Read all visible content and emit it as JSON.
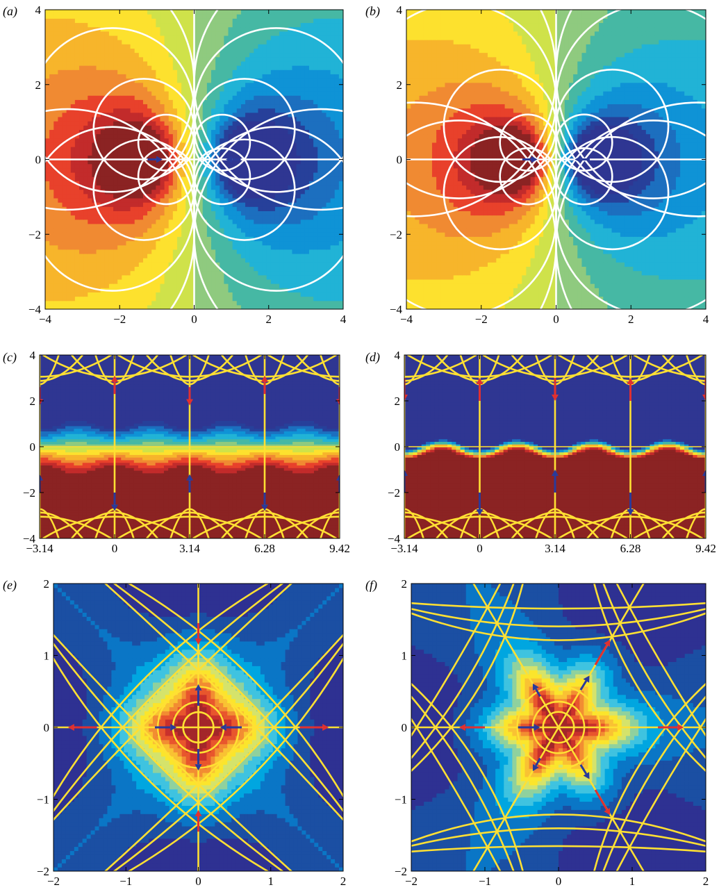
{
  "chart_data": [
    {
      "panel": "a",
      "label": "(a)",
      "type": "heatmap",
      "colormap": "diverging-red-blue",
      "field": "dipole-pair-streamfunction",
      "xlim": [
        -4,
        4
      ],
      "ylim": [
        -4,
        4
      ],
      "xticks": [
        -4,
        -2,
        0,
        2,
        4
      ],
      "yticks": [
        -4,
        -2,
        0,
        2,
        4
      ],
      "xticklabels": [
        "−4",
        "−2",
        "0",
        "2",
        "4"
      ],
      "yticklabels": [
        "−4",
        "−2",
        "0",
        "2",
        "4"
      ],
      "streamline_color": "#ffffff",
      "arrows": [
        {
          "x": -1.25,
          "y": 0,
          "dx": 0.4,
          "dy": 0,
          "color": "#2a3a9a"
        },
        {
          "x": 1.25,
          "y": 0,
          "dx": -0.4,
          "dy": 0,
          "color": "#2a3a9a"
        }
      ]
    },
    {
      "panel": "b",
      "label": "(b)",
      "type": "heatmap",
      "colormap": "diverging-red-blue",
      "field": "dipole-pair-streamfunction",
      "xlim": [
        -4,
        4
      ],
      "ylim": [
        -4,
        4
      ],
      "xticks": [
        -4,
        -2,
        0,
        2,
        4
      ],
      "yticks": [
        -4,
        -2,
        0,
        2,
        4
      ],
      "xticklabels": [
        "−4",
        "−2",
        "0",
        "2",
        "4"
      ],
      "yticklabels": [
        "−4",
        "−2",
        "0",
        "2",
        "4"
      ],
      "streamline_color": "#ffffff",
      "arrows": [
        {
          "x": -0.9,
          "y": 0,
          "dx": 0.4,
          "dy": 0,
          "color": "#2a3a9a"
        },
        {
          "x": 0.9,
          "y": 0,
          "dx": -0.4,
          "dy": 0,
          "color": "#2a3a9a"
        }
      ]
    },
    {
      "panel": "c",
      "label": "(c)",
      "type": "heatmap",
      "colormap": "diverging-red-blue",
      "field": "periodic-vortex-row",
      "xlim": [
        -3.14,
        9.42
      ],
      "ylim": [
        -4,
        4
      ],
      "xticks": [
        -3.14,
        0,
        3.14,
        6.28,
        9.42
      ],
      "yticks": [
        -4,
        -2,
        0,
        2,
        4
      ],
      "xticklabels": [
        "−3.14",
        "0",
        "3.14",
        "6.28",
        "9.42"
      ],
      "yticklabels": [
        "−4",
        "−2",
        "0",
        "2",
        "4"
      ],
      "streamline_color": "#ffe033",
      "arrows": [
        {
          "x": 0,
          "y": 2.3,
          "dx": 0,
          "dy": 0.8,
          "color": "#e03030"
        },
        {
          "x": 6.28,
          "y": 2.3,
          "dx": 0,
          "dy": 0.8,
          "color": "#e03030"
        },
        {
          "x": -3.14,
          "y": 2.6,
          "dx": 0,
          "dy": -0.8,
          "color": "#e03030"
        },
        {
          "x": 3.14,
          "y": 2.6,
          "dx": 0,
          "dy": -0.8,
          "color": "#e03030"
        },
        {
          "x": 9.42,
          "y": 2.6,
          "dx": 0,
          "dy": -0.8,
          "color": "#e03030"
        },
        {
          "x": -3.14,
          "y": -2.0,
          "dx": 0,
          "dy": 0.8,
          "color": "#2a3a9a"
        },
        {
          "x": 3.14,
          "y": -2.0,
          "dx": 0,
          "dy": 0.8,
          "color": "#2a3a9a"
        },
        {
          "x": 9.42,
          "y": -2.0,
          "dx": 0,
          "dy": 0.8,
          "color": "#2a3a9a"
        },
        {
          "x": 0,
          "y": -2.0,
          "dx": 0,
          "dy": -0.8,
          "color": "#2a3a9a"
        },
        {
          "x": 6.28,
          "y": -2.0,
          "dx": 0,
          "dy": -0.8,
          "color": "#2a3a9a"
        }
      ]
    },
    {
      "panel": "d",
      "label": "(d)",
      "type": "heatmap",
      "colormap": "diverging-red-blue",
      "field": "periodic-vortex-row-sharp",
      "xlim": [
        -3.14,
        9.42
      ],
      "ylim": [
        -4,
        4
      ],
      "xticks": [
        -3.14,
        0,
        3.14,
        6.28,
        9.42
      ],
      "yticks": [
        -4,
        -2,
        0,
        2,
        4
      ],
      "xticklabels": [
        "−3.14",
        "0",
        "3.14",
        "6.28",
        "9.42"
      ],
      "yticklabels": [
        "−4",
        "−2",
        "0",
        "2",
        "4"
      ],
      "streamline_color": "#ffe033",
      "arrows": [
        {
          "x": 0,
          "y": 2.0,
          "dx": 0,
          "dy": 1.0,
          "color": "#e03030"
        },
        {
          "x": 6.28,
          "y": 2.0,
          "dx": 0,
          "dy": 1.0,
          "color": "#e03030"
        },
        {
          "x": -3.14,
          "y": 3.0,
          "dx": 0,
          "dy": -1.0,
          "color": "#e03030"
        },
        {
          "x": 3.14,
          "y": 3.0,
          "dx": 0,
          "dy": -1.0,
          "color": "#e03030"
        },
        {
          "x": 9.42,
          "y": 3.0,
          "dx": 0,
          "dy": -1.0,
          "color": "#e03030"
        },
        {
          "x": -3.14,
          "y": -2.0,
          "dx": 0,
          "dy": 1.0,
          "color": "#2a3a9a"
        },
        {
          "x": 3.14,
          "y": -2.0,
          "dx": 0,
          "dy": 1.0,
          "color": "#2a3a9a"
        },
        {
          "x": 9.42,
          "y": -2.0,
          "dx": 0,
          "dy": 1.0,
          "color": "#2a3a9a"
        },
        {
          "x": 0,
          "y": -2.0,
          "dx": 0,
          "dy": -1.0,
          "color": "#2a3a9a"
        },
        {
          "x": 6.28,
          "y": -2.0,
          "dx": 0,
          "dy": -1.0,
          "color": "#2a3a9a"
        }
      ]
    },
    {
      "panel": "e",
      "label": "(e)",
      "type": "heatmap",
      "colormap": "jet",
      "field": "two-fold-stagnation",
      "xlim": [
        -2,
        2
      ],
      "ylim": [
        -2,
        2
      ],
      "xticks": [
        -2,
        -1,
        0,
        1,
        2
      ],
      "yticks": [
        -2,
        -1,
        0,
        1,
        2
      ],
      "xticklabels": [
        "−2",
        "−1",
        "0",
        "1",
        "2"
      ],
      "yticklabels": [
        "−2",
        "−1",
        "0",
        "1",
        "2"
      ],
      "streamline_color": "#ffe033",
      "arrows": [
        {
          "x": -1.4,
          "y": 0,
          "dx": -0.4,
          "dy": 0,
          "color": "#e03030"
        },
        {
          "x": 1.4,
          "y": 0,
          "dx": 0.4,
          "dy": 0,
          "color": "#e03030"
        },
        {
          "x": 0,
          "y": 1.45,
          "dx": 0,
          "dy": -0.3,
          "color": "#e03030"
        },
        {
          "x": 0,
          "y": -1.45,
          "dx": 0,
          "dy": 0.3,
          "color": "#e03030"
        },
        {
          "x": -0.6,
          "y": 0,
          "dx": 0.3,
          "dy": 0,
          "color": "#2a3a9a"
        },
        {
          "x": 0.6,
          "y": 0,
          "dx": -0.3,
          "dy": 0,
          "color": "#2a3a9a"
        },
        {
          "x": 0,
          "y": 0.3,
          "dx": 0,
          "dy": 0.3,
          "color": "#2a3a9a"
        },
        {
          "x": 0,
          "y": -0.3,
          "dx": 0,
          "dy": -0.3,
          "color": "#2a3a9a"
        }
      ]
    },
    {
      "panel": "f",
      "label": "(f)",
      "type": "heatmap",
      "colormap": "jet",
      "field": "three-fold-stagnation",
      "xlim": [
        -2,
        2
      ],
      "ylim": [
        -2,
        2
      ],
      "xticks": [
        -2,
        -1,
        0,
        1,
        2
      ],
      "yticks": [
        -2,
        -1,
        0,
        1,
        2
      ],
      "xticklabels": [
        "−2",
        "−1",
        "0",
        "1",
        "2"
      ],
      "yticklabels": [
        "−2",
        "−1",
        "0",
        "1",
        "2"
      ],
      "streamline_color": "#ffe033",
      "arrows": [
        {
          "x": -1.0,
          "y": 0,
          "dx": -0.35,
          "dy": 0,
          "color": "#e03030"
        },
        {
          "x": 1.35,
          "y": 0,
          "dx": 0.35,
          "dy": 0,
          "color": "#e03030"
        },
        {
          "x": 0.5,
          "y": 0.87,
          "dx": 0.2,
          "dy": 0.35,
          "color": "#e03030"
        },
        {
          "x": 0.5,
          "y": -0.87,
          "dx": 0.2,
          "dy": -0.35,
          "color": "#e03030"
        },
        {
          "x": -0.55,
          "y": 0,
          "dx": 0.3,
          "dy": 0,
          "color": "#2a3a9a"
        },
        {
          "x": 0.3,
          "y": 0.52,
          "dx": 0.12,
          "dy": 0.2,
          "color": "#2a3a9a"
        },
        {
          "x": 0.3,
          "y": -0.52,
          "dx": 0.12,
          "dy": -0.2,
          "color": "#2a3a9a"
        },
        {
          "x": -0.25,
          "y": 0.43,
          "dx": -0.1,
          "dy": 0.18,
          "color": "#2a3a9a"
        },
        {
          "x": -0.25,
          "y": -0.43,
          "dx": -0.1,
          "dy": -0.18,
          "color": "#2a3a9a"
        }
      ]
    }
  ]
}
